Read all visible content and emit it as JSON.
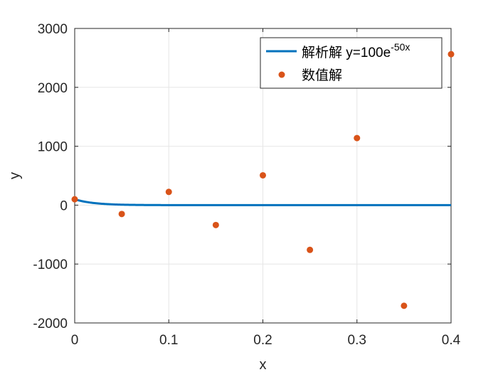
{
  "chart_data": {
    "type": "line",
    "xlabel": "x",
    "ylabel": "y",
    "xlim": [
      0,
      0.4
    ],
    "ylim": [
      -2000,
      3000
    ],
    "xticks": [
      0,
      0.1,
      0.2,
      0.3,
      0.4
    ],
    "xtick_labels": [
      "0",
      "0.1",
      "0.2",
      "0.3",
      "0.4"
    ],
    "yticks": [
      -2000,
      -1000,
      0,
      1000,
      2000,
      3000
    ],
    "ytick_labels": [
      "-2000",
      "-1000",
      "0",
      "1000",
      "2000",
      "3000"
    ],
    "grid": true,
    "legend_position": "top-right",
    "series": [
      {
        "name": "解析解 y=100e",
        "name_superscript": "-50x",
        "kind": "line",
        "color": "#0072BD",
        "formula": "y = 100*exp(-50*x)",
        "x": [
          0,
          0.01,
          0.02,
          0.03,
          0.04,
          0.05,
          0.06,
          0.08,
          0.1,
          0.2,
          0.3,
          0.4
        ],
        "y": [
          100,
          60.65,
          36.79,
          22.31,
          13.53,
          8.21,
          4.98,
          1.83,
          0.67,
          0,
          0,
          0
        ]
      },
      {
        "name": "数值解",
        "kind": "scatter",
        "color": "#D95319",
        "x": [
          0,
          0.05,
          0.1,
          0.15,
          0.2,
          0.25,
          0.3,
          0.35,
          0.4
        ],
        "y": [
          100,
          -150,
          225,
          -337.5,
          506.25,
          -759.38,
          1139.06,
          -1708.59,
          2562.89
        ]
      }
    ]
  }
}
